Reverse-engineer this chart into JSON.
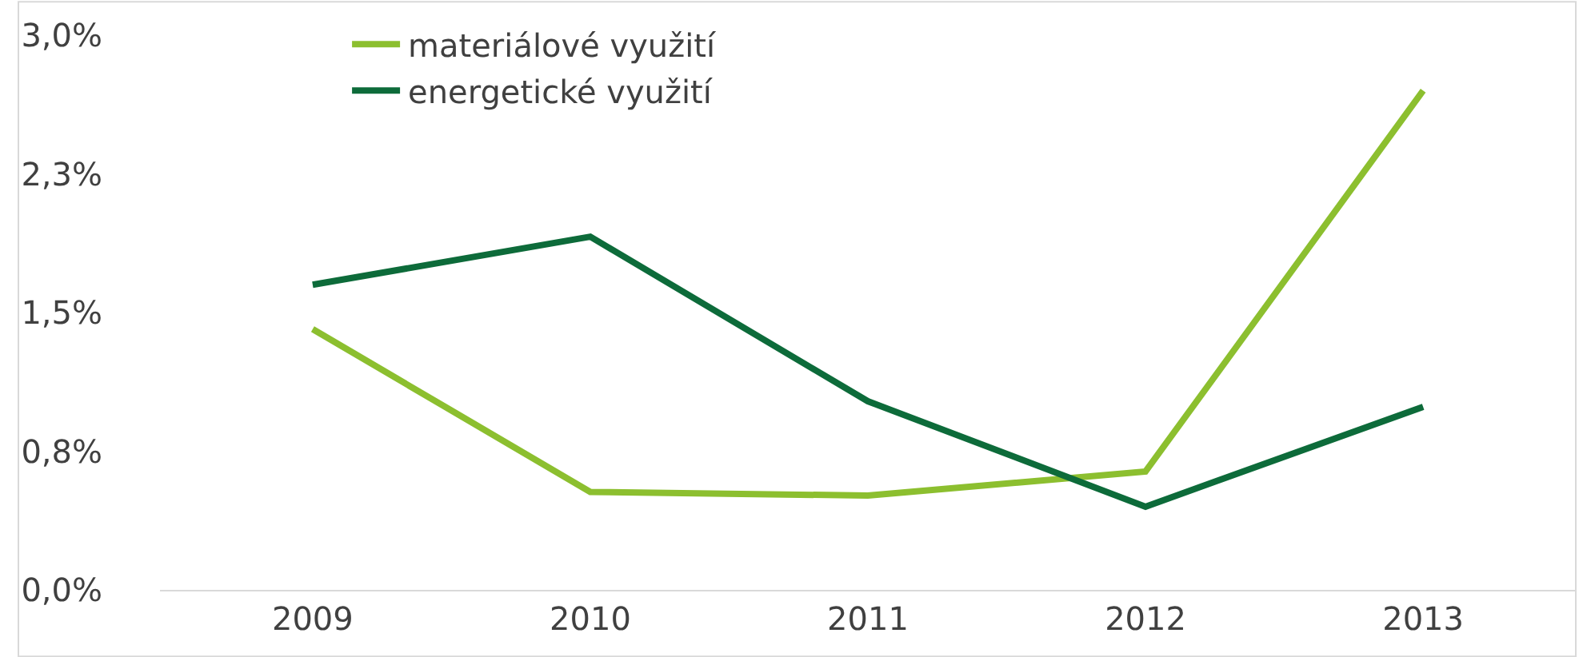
{
  "chart_data": {
    "type": "line",
    "categories": [
      "2009",
      "2010",
      "2011",
      "2012",
      "2013"
    ],
    "series": [
      {
        "name": "materiálové využití",
        "color": "#8cbf2f",
        "values": [
          1.41,
          0.53,
          0.51,
          0.64,
          2.7
        ]
      },
      {
        "name": "energetické využití",
        "color": "#0d6b3a",
        "values": [
          1.65,
          1.91,
          1.02,
          0.45,
          0.99
        ]
      }
    ],
    "ylim": [
      0,
      3.0
    ],
    "yticks": [
      {
        "value": 0,
        "label": "0,0%"
      },
      {
        "value": 0.75,
        "label": "0,8%"
      },
      {
        "value": 1.5,
        "label": "1,5%"
      },
      {
        "value": 2.25,
        "label": "2,3%"
      },
      {
        "value": 3.0,
        "label": "3,0%"
      }
    ],
    "legend": "top left",
    "marker": "none",
    "line_style": "solid"
  }
}
